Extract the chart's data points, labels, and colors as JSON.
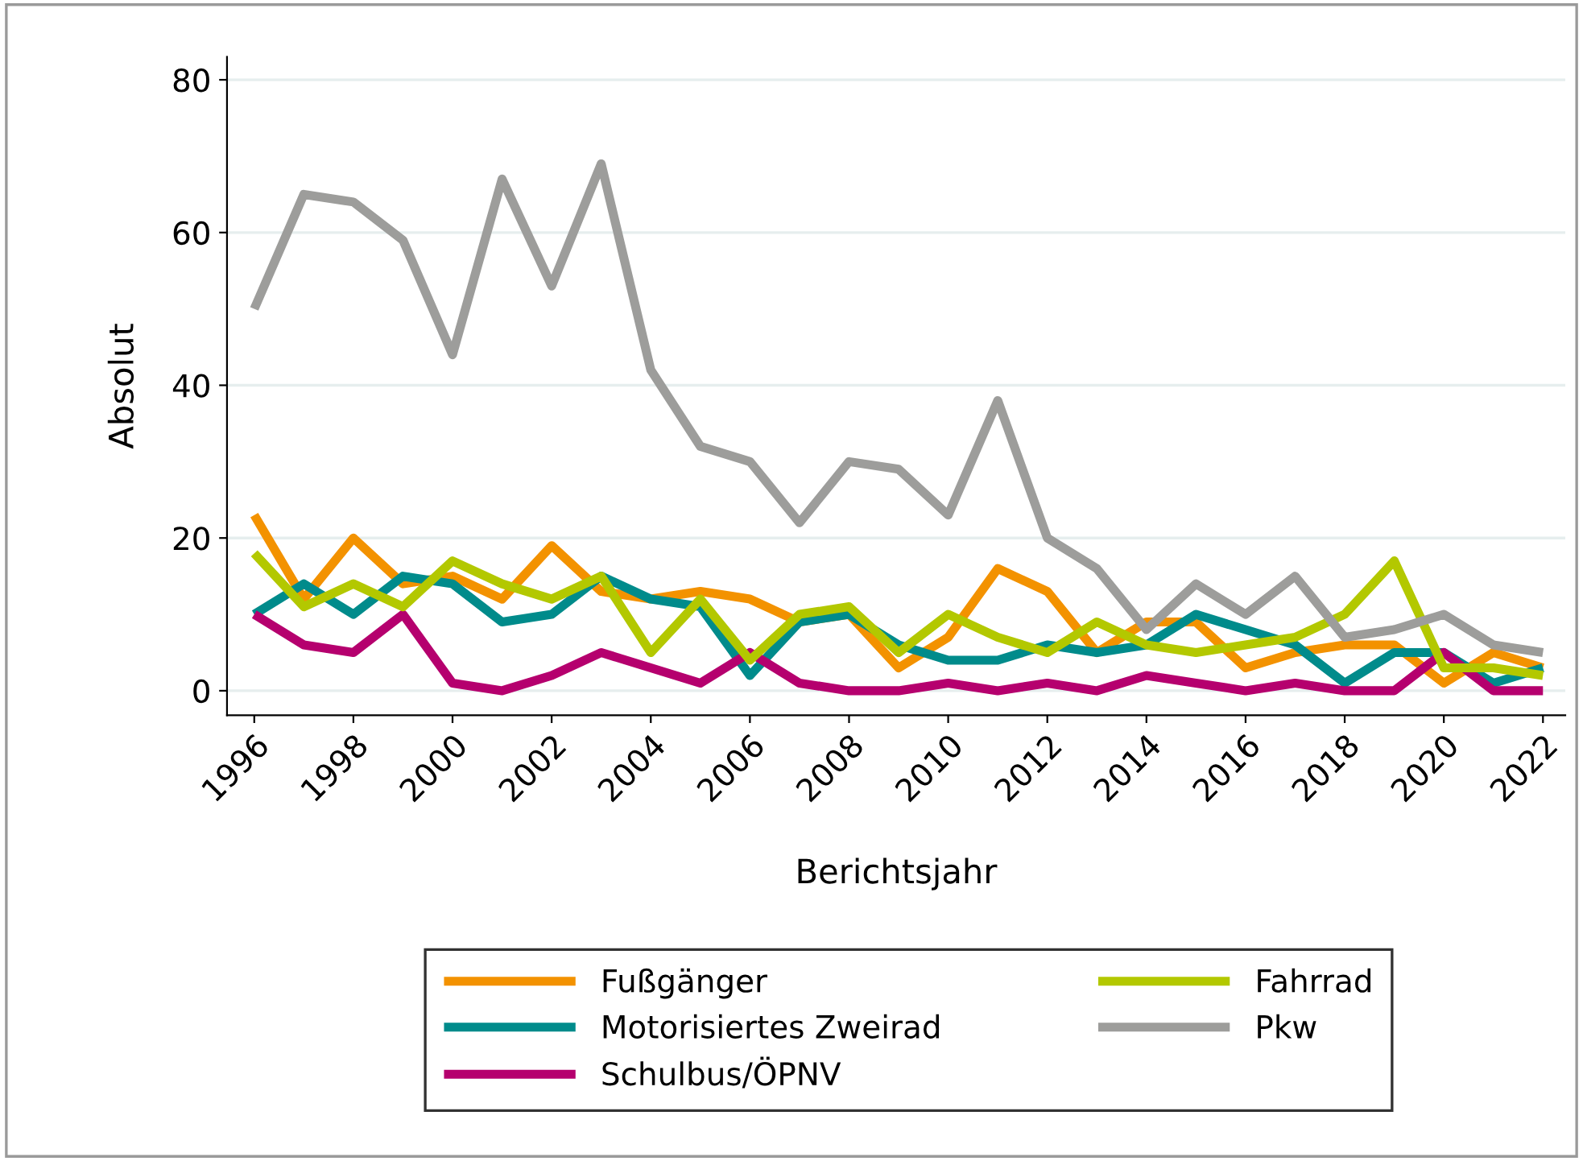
{
  "chart_data": {
    "type": "line",
    "xlabel": "Berichtsjahr",
    "ylabel": "Absolut",
    "x": [
      1996,
      1997,
      1998,
      1999,
      2000,
      2001,
      2002,
      2003,
      2004,
      2005,
      2006,
      2007,
      2008,
      2009,
      2010,
      2011,
      2012,
      2013,
      2014,
      2015,
      2016,
      2017,
      2018,
      2019,
      2020,
      2021,
      2022
    ],
    "series": [
      {
        "name": "Fußgänger",
        "color": "#f39200",
        "values": [
          23,
          12,
          20,
          14,
          15,
          12,
          19,
          13,
          12,
          13,
          12,
          9,
          10,
          3,
          7,
          16,
          13,
          5,
          9,
          9,
          3,
          5,
          6,
          6,
          1,
          5,
          3
        ]
      },
      {
        "name": "Motorisiertes Zweirad",
        "color": "#008b8b",
        "values": [
          10,
          14,
          10,
          15,
          14,
          9,
          10,
          15,
          12,
          11,
          2,
          9,
          10,
          6,
          4,
          4,
          6,
          5,
          6,
          10,
          8,
          6,
          1,
          5,
          5,
          1,
          3
        ]
      },
      {
        "name": "Schulbus/ÖPNV",
        "color": "#b5006e",
        "values": [
          10,
          6,
          5,
          10,
          1,
          0,
          2,
          5,
          3,
          1,
          5,
          1,
          0,
          0,
          1,
          0,
          1,
          0,
          2,
          1,
          0,
          1,
          0,
          0,
          5,
          0,
          0
        ]
      },
      {
        "name": "Fahrrad",
        "color": "#b3c800",
        "values": [
          18,
          11,
          14,
          11,
          17,
          14,
          12,
          15,
          5,
          12,
          4,
          10,
          11,
          5,
          10,
          7,
          5,
          9,
          6,
          5,
          6,
          7,
          10,
          17,
          3,
          3,
          2
        ]
      },
      {
        "name": "Pkw",
        "color": "#9d9d9b",
        "values": [
          50,
          65,
          64,
          59,
          44,
          67,
          53,
          69,
          42,
          32,
          30,
          22,
          30,
          29,
          23,
          38,
          20,
          16,
          8,
          14,
          10,
          15,
          7,
          8,
          10,
          6,
          5
        ]
      }
    ],
    "xlim": [
      1995.45,
      2022.45
    ],
    "ylim": [
      -3.2,
      83
    ],
    "xticks": [
      1996,
      1998,
      2000,
      2002,
      2004,
      2006,
      2008,
      2010,
      2012,
      2014,
      2016,
      2018,
      2020,
      2022
    ],
    "yticks": [
      0,
      20,
      40,
      60,
      80
    ],
    "grid": "y",
    "legend": "bottom",
    "marker": "none",
    "line_style": "solid"
  }
}
